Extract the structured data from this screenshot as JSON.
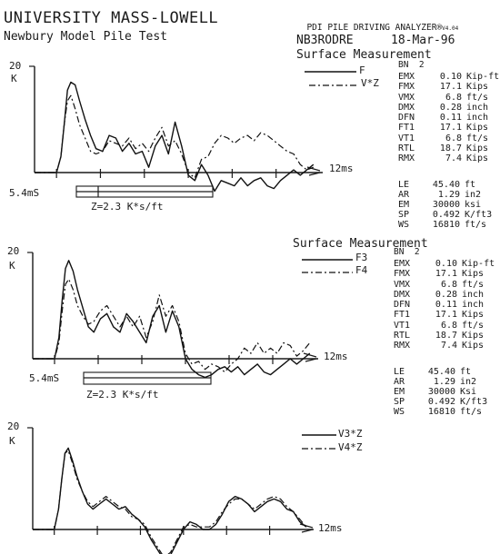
{
  "header": {
    "title": "UNIVERSITY MASS-LOWELL",
    "subtitle": "Newbury Model Pile Test",
    "analyzer": "PDI PILE DRIVING ANALYZER®",
    "version": "V4.04",
    "record_id": "NB3RODRE",
    "date": "18-Mar-96"
  },
  "panels": [
    {
      "section_title": "Surface Measurement",
      "ylabel_value": "20",
      "ylabel_unit": "K",
      "x_end_label": "12ms",
      "time_label": "5.4mS",
      "impedance_label": "Z=2.3 K*s/ft",
      "bn_label": "BN  2",
      "results": [
        {
          "key": "EMX",
          "value": "0.10",
          "unit": "Kip-ft"
        },
        {
          "key": "FMX",
          "value": "17.1",
          "unit": "Kips"
        },
        {
          "key": "VMX",
          "value": "6.8",
          "unit": "ft/s"
        },
        {
          "key": "DMX",
          "value": "0.28",
          "unit": "inch"
        },
        {
          "key": "DFN",
          "value": "0.11",
          "unit": "inch"
        },
        {
          "key": "FT1",
          "value": "17.1",
          "unit": "Kips"
        },
        {
          "key": "VT1",
          "value": "6.8",
          "unit": "ft/s"
        },
        {
          "key": "RTL",
          "value": "18.7",
          "unit": "Kips"
        },
        {
          "key": "RMX",
          "value": "7.4",
          "unit": "Kips"
        }
      ],
      "pile_info": [
        {
          "key": "LE",
          "value": "45.40",
          "unit": "ft"
        },
        {
          "key": "AR",
          "value": "1.29",
          "unit": "in2"
        },
        {
          "key": "EM",
          "value": "30000",
          "unit": "ksi"
        },
        {
          "key": "SP",
          "value": "0.492",
          "unit": "K/ft3"
        },
        {
          "key": "WS",
          "value": "16810",
          "unit": "ft/s"
        }
      ]
    },
    {
      "section_title": "Surface Measurement",
      "ylabel_value": "20",
      "ylabel_unit": "K",
      "x_end_label": "12ms",
      "time_label": "5.4mS",
      "impedance_label": "Z=2.3 K*s/ft",
      "bn_label": "BN  2",
      "results": [
        {
          "key": "EMX",
          "value": "0.10",
          "unit": "Kip-ft"
        },
        {
          "key": "FMX",
          "value": "17.1",
          "unit": "Kips"
        },
        {
          "key": "VMX",
          "value": "6.8",
          "unit": "ft/s"
        },
        {
          "key": "DMX",
          "value": "0.28",
          "unit": "inch"
        },
        {
          "key": "DFN",
          "value": "0.11",
          "unit": "inch"
        },
        {
          "key": "FT1",
          "value": "17.1",
          "unit": "Kips"
        },
        {
          "key": "VT1",
          "value": "6.8",
          "unit": "ft/s"
        },
        {
          "key": "RTL",
          "value": "18.7",
          "unit": "Kips"
        },
        {
          "key": "RMX",
          "value": "7.4",
          "unit": "Kips"
        }
      ],
      "pile_info": [
        {
          "key": "LE",
          "value": "45.40",
          "unit": "ft"
        },
        {
          "key": "AR",
          "value": "1.29",
          "unit": "in2"
        },
        {
          "key": "EM",
          "value": "30000",
          "unit": "Ksi"
        },
        {
          "key": "SP",
          "value": "0.492",
          "unit": "K/ft3"
        },
        {
          "key": "WS",
          "value": "16810",
          "unit": "ft/s"
        }
      ]
    },
    {
      "ylabel_value": "20",
      "ylabel_unit": "K",
      "x_end_label": "12ms"
    }
  ],
  "chart_data": [
    {
      "type": "line",
      "xlabel": "",
      "ylabel": "K",
      "x_unit_label": "12ms",
      "xlim": [
        -1,
        12
      ],
      "ylim": [
        -8,
        20
      ],
      "series": [
        {
          "name": "F",
          "style": "solid",
          "x": [
            -1,
            0,
            0.2,
            0.35,
            0.5,
            0.65,
            0.85,
            1.05,
            1.3,
            1.55,
            1.8,
            2.1,
            2.4,
            2.7,
            3.0,
            3.3,
            3.6,
            3.9,
            4.2,
            4.5,
            4.8,
            5.1,
            5.4,
            5.7,
            6.0,
            6.3,
            6.6,
            6.9,
            7.2,
            7.5,
            7.8,
            8.1,
            8.4,
            8.7,
            9.0,
            9.3,
            9.6,
            9.9,
            10.2,
            10.5,
            10.8,
            11.1,
            11.4,
            11.7
          ],
          "y": [
            0,
            0,
            3,
            9,
            15.5,
            17,
            16.5,
            13.5,
            10,
            7,
            4.5,
            4,
            7,
            6.5,
            4,
            5.5,
            3.5,
            4,
            1,
            5,
            7,
            3.5,
            9.5,
            5,
            -0.5,
            -1.5,
            1.5,
            -0.5,
            -3.5,
            -1.5,
            -2,
            -2.5,
            -1,
            -2.5,
            -1.5,
            -1,
            -2.5,
            -3,
            -1.5,
            -0.5,
            0.5,
            -0.5,
            0.5,
            1.5
          ]
        },
        {
          "name": "V*Z",
          "style": "dashdot",
          "x": [
            -1,
            0,
            0.2,
            0.35,
            0.5,
            0.65,
            0.85,
            1.05,
            1.3,
            1.55,
            1.8,
            2.1,
            2.4,
            2.7,
            3.0,
            3.3,
            3.6,
            3.9,
            4.2,
            4.5,
            4.8,
            5.1,
            5.4,
            5.7,
            6.0,
            6.3,
            6.6,
            6.9,
            7.2,
            7.5,
            7.8,
            8.1,
            8.4,
            8.7,
            9.0,
            9.3,
            9.6,
            9.9,
            10.2,
            10.5,
            10.8,
            11.1,
            11.4,
            11.7
          ],
          "y": [
            0,
            0,
            3,
            9,
            13.5,
            14.5,
            12,
            9,
            6.5,
            4,
            3.5,
            4,
            6,
            5.5,
            5,
            6.5,
            4.5,
            5.5,
            4,
            6.5,
            8.5,
            5,
            6,
            3.5,
            0,
            -1,
            2.5,
            3,
            5.5,
            7,
            6.5,
            5.5,
            6.5,
            7,
            6,
            7.5,
            7,
            6,
            5,
            4,
            3.5,
            1.5,
            0.5,
            1
          ]
        }
      ]
    },
    {
      "type": "line",
      "xlabel": "",
      "ylabel": "K",
      "x_unit_label": "12ms",
      "xlim": [
        -1,
        12
      ],
      "ylim": [
        -8,
        20
      ],
      "series": [
        {
          "name": "F3",
          "style": "solid",
          "x": [
            -1,
            0,
            0.2,
            0.35,
            0.5,
            0.65,
            0.85,
            1.05,
            1.3,
            1.55,
            1.8,
            2.1,
            2.4,
            2.7,
            3.0,
            3.3,
            3.6,
            3.9,
            4.2,
            4.5,
            4.8,
            5.1,
            5.4,
            5.7,
            6.0,
            6.3,
            6.6,
            6.9,
            7.2,
            7.5,
            7.8,
            8.1,
            8.4,
            8.7,
            9.0,
            9.3,
            9.6,
            9.9,
            10.2,
            10.5,
            10.8,
            11.1,
            11.4,
            11.7
          ],
          "y": [
            0,
            0,
            4,
            11,
            17,
            18.5,
            16.5,
            13,
            9.5,
            6,
            5,
            7.5,
            8.5,
            6,
            5,
            8.5,
            7,
            5,
            3,
            8,
            10,
            5,
            9,
            6,
            0,
            -2,
            -3,
            -3.5,
            -3,
            -2,
            -1.5,
            -2.5,
            -1.5,
            -3,
            -2,
            -1,
            -2.5,
            -3,
            -2,
            -1,
            0,
            -1,
            0,
            1
          ]
        },
        {
          "name": "F4",
          "style": "dashdot",
          "x": [
            -1,
            0,
            0.2,
            0.35,
            0.5,
            0.65,
            0.85,
            1.05,
            1.3,
            1.55,
            1.8,
            2.1,
            2.4,
            2.7,
            3.0,
            3.3,
            3.6,
            3.9,
            4.2,
            4.5,
            4.8,
            5.1,
            5.4,
            5.7,
            6.0,
            6.3,
            6.6,
            6.9,
            7.2,
            7.5,
            7.8,
            8.1,
            8.4,
            8.7,
            9.0,
            9.3,
            9.6,
            9.9,
            10.2,
            10.5,
            10.8,
            11.1,
            11.4,
            11.7
          ],
          "y": [
            0,
            0,
            3,
            9,
            14,
            15,
            13,
            10,
            8,
            6.5,
            7,
            9,
            10,
            8,
            6,
            8,
            6,
            8,
            4,
            7,
            12,
            8,
            10,
            7,
            1,
            -1,
            -0.5,
            -2,
            -1,
            -1.5,
            -2.5,
            -1,
            0,
            2,
            1,
            3,
            1,
            2,
            1,
            3,
            2.5,
            0.5,
            1.5,
            3
          ]
        }
      ]
    },
    {
      "type": "line",
      "xlabel": "",
      "ylabel": "K",
      "x_unit_label": "12ms",
      "xlim": [
        -1,
        12
      ],
      "ylim": [
        -8,
        20
      ],
      "series": [
        {
          "name": "V3*Z",
          "style": "solid",
          "x": [
            -1,
            0,
            0.2,
            0.35,
            0.5,
            0.65,
            0.85,
            1.05,
            1.3,
            1.55,
            1.8,
            2.1,
            2.4,
            2.7,
            3.0,
            3.3,
            3.6,
            3.9,
            4.2,
            4.5,
            4.8,
            5.1,
            5.4,
            5.7,
            6.0,
            6.3,
            6.6,
            6.9,
            7.2,
            7.5,
            7.8,
            8.1,
            8.4,
            8.7,
            9.0,
            9.3,
            9.6,
            9.9,
            10.2,
            10.5,
            10.8,
            11.1,
            11.4,
            11.7
          ],
          "y": [
            0,
            0,
            4,
            10,
            15,
            16,
            13.5,
            10.5,
            7.5,
            5,
            4,
            5,
            6,
            5,
            4,
            4.5,
            3,
            2,
            0.5,
            -2,
            -4,
            -6,
            -5,
            -2.5,
            0,
            1.5,
            1,
            0,
            0,
            1,
            3,
            5.5,
            6.5,
            6,
            5,
            3.5,
            4.5,
            5.5,
            6,
            5.5,
            4,
            3.5,
            1.5,
            0.5
          ]
        },
        {
          "name": "V4*Z",
          "style": "dashdot",
          "x": [
            -1,
            0,
            0.2,
            0.35,
            0.5,
            0.65,
            0.85,
            1.05,
            1.3,
            1.55,
            1.8,
            2.1,
            2.4,
            2.7,
            3.0,
            3.3,
            3.6,
            3.9,
            4.2,
            4.5,
            4.8,
            5.1,
            5.4,
            5.7,
            6.0,
            6.3,
            6.6,
            6.9,
            7.2,
            7.5,
            7.8,
            8.1,
            8.4,
            8.7,
            9.0,
            9.3,
            9.6,
            9.9,
            10.2,
            10.5,
            10.8,
            11.1,
            11.4,
            11.7
          ],
          "y": [
            0,
            0,
            4,
            10,
            15,
            15.5,
            13,
            10,
            7.5,
            5.5,
            4.5,
            5.5,
            6.5,
            5.5,
            4.5,
            4,
            2.5,
            2,
            1,
            -1.5,
            -3.5,
            -5.5,
            -4.5,
            -2,
            0.5,
            1,
            0.5,
            0.5,
            0.5,
            1.5,
            3.5,
            5,
            6,
            6,
            5,
            4,
            5,
            6,
            6.5,
            6,
            4.5,
            3.5,
            2,
            0.5
          ]
        }
      ]
    }
  ]
}
